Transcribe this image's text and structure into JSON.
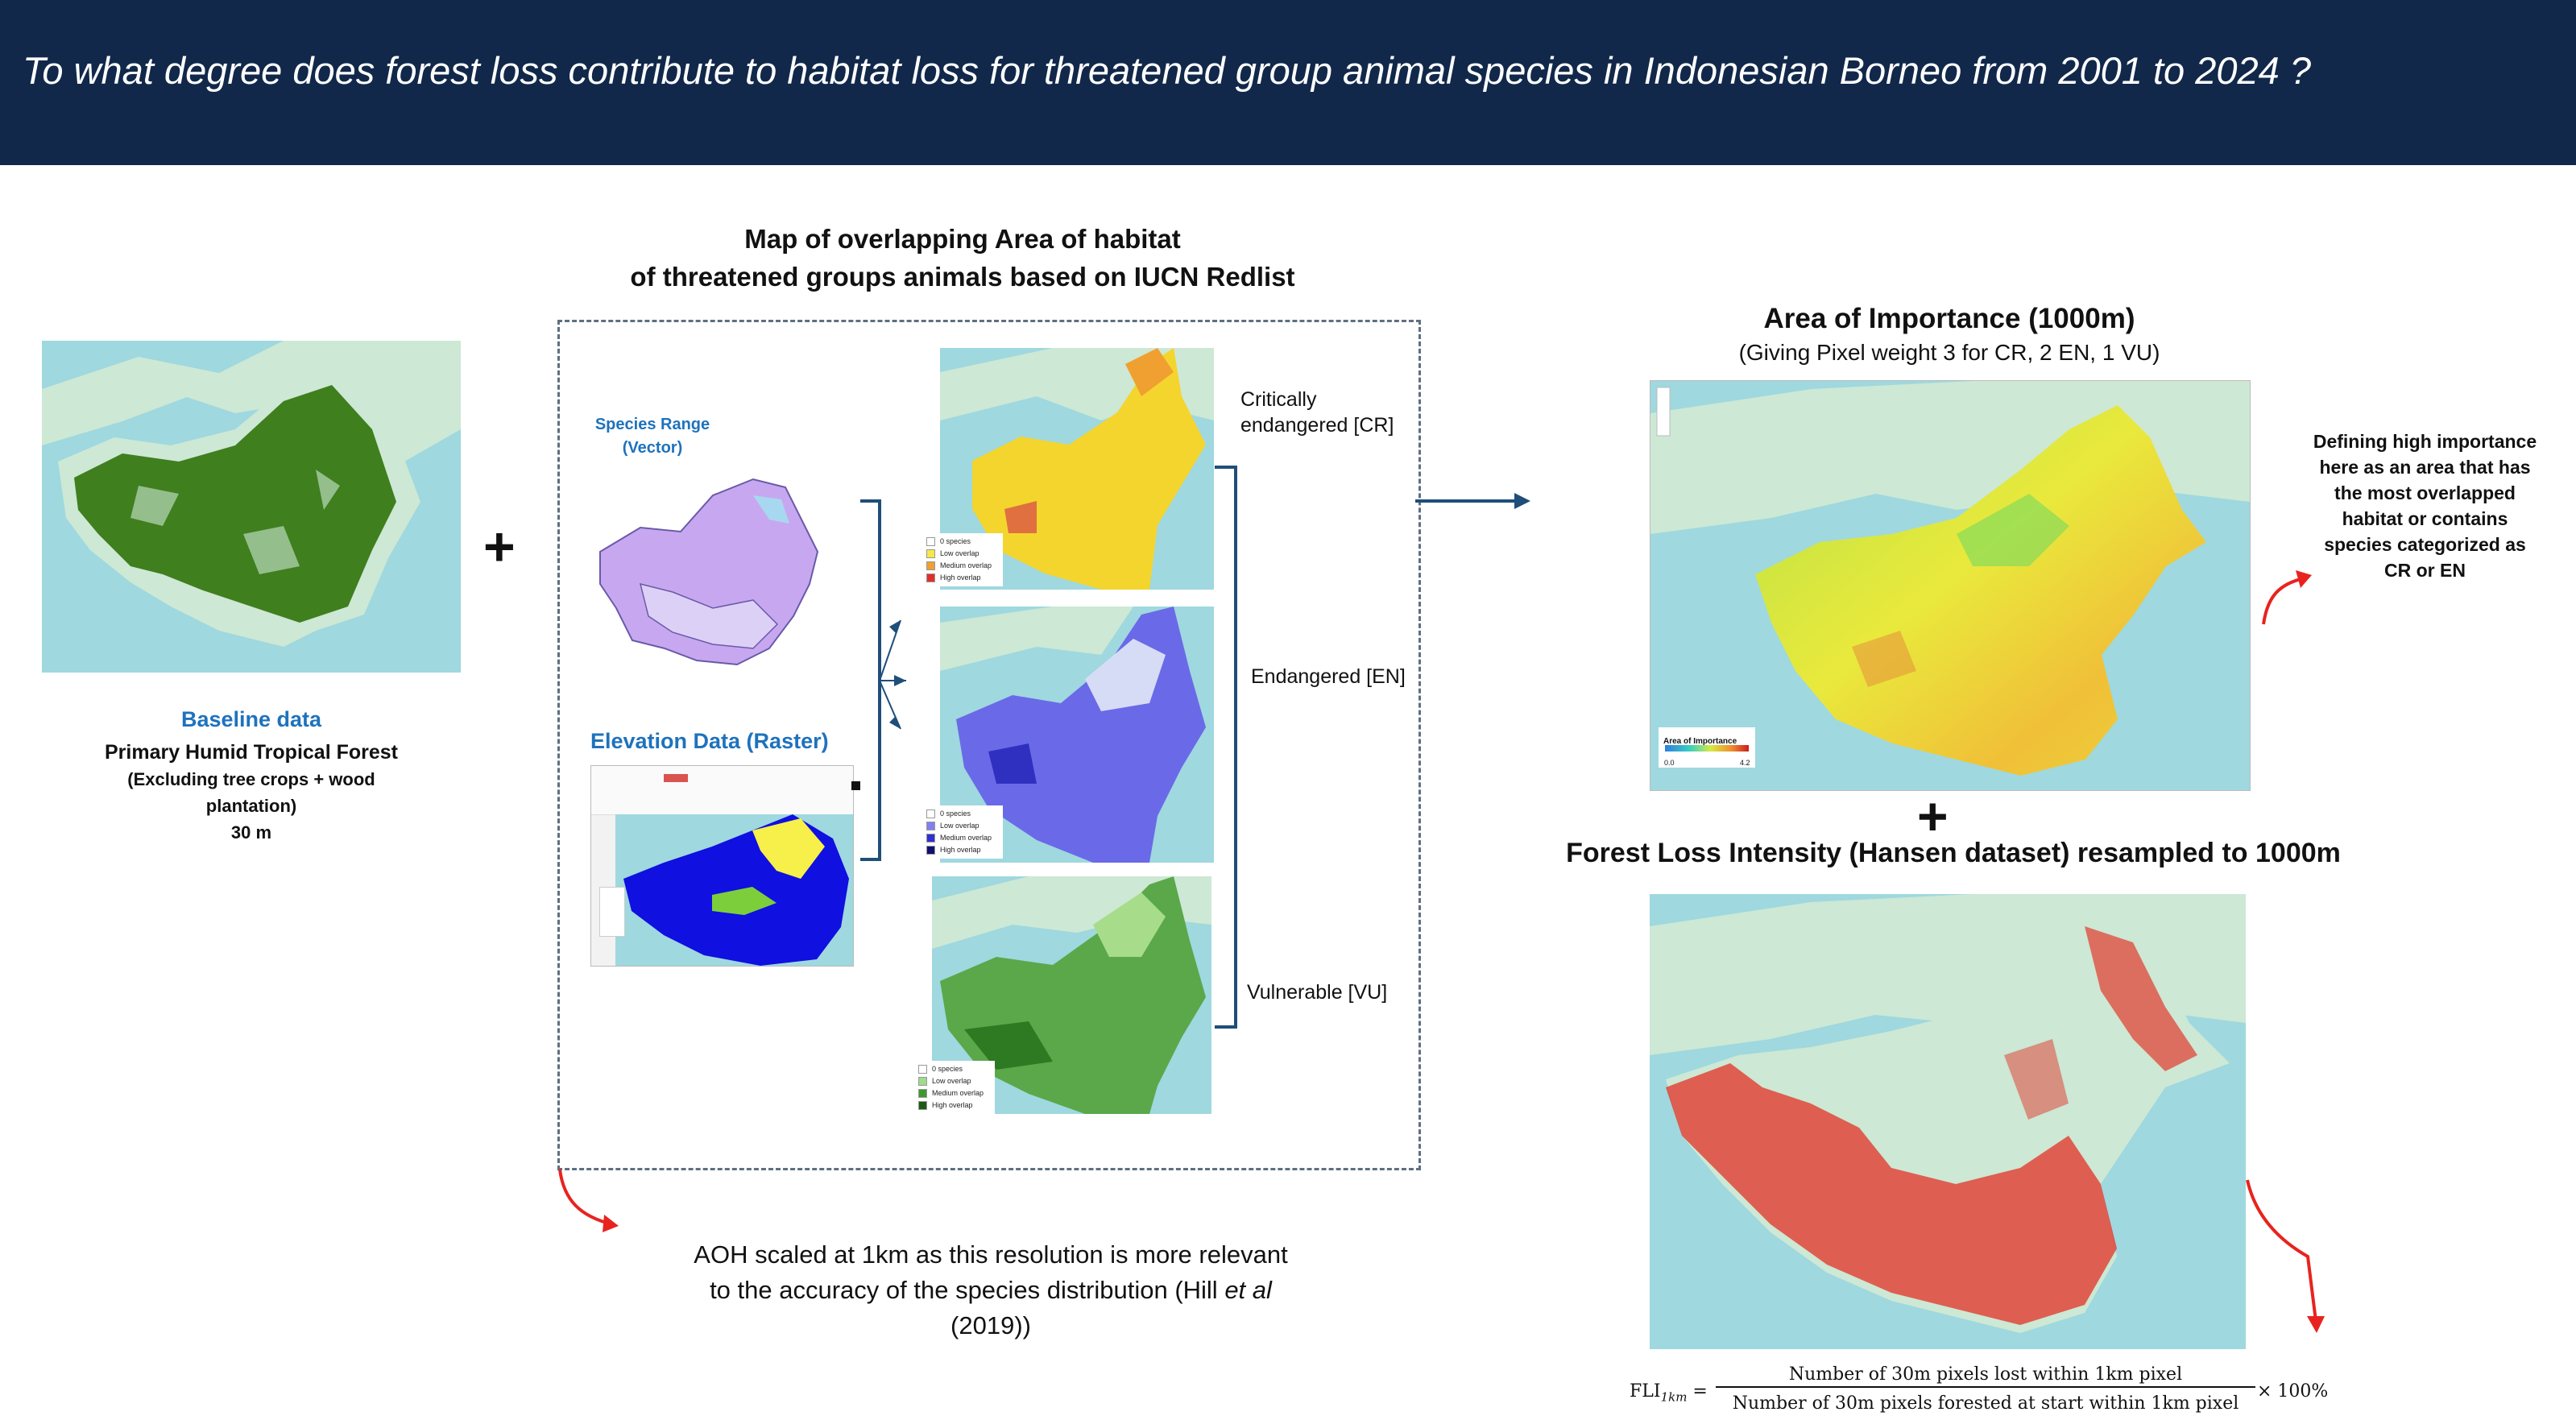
{
  "banner": {
    "question": "To what degree does forest loss contribute to habitat loss for threatened group animal species in Indonesian Borneo from 2001 to 2024 ?"
  },
  "baseline": {
    "heading": "Baseline data",
    "line1": "Primary Humid Tropical Forest",
    "line2": "(Excluding tree crops + wood",
    "line3": "plantation)",
    "line4": "30 m"
  },
  "overlap": {
    "title_line1": "Map of overlapping Area of habitat",
    "title_line2": "of threatened groups animals based on IUCN Redlist",
    "species_range_line1": "Species Range",
    "species_range_line2": "(Vector)",
    "elevation_label": "Elevation Data (Raster)",
    "cr_line1": "Critically",
    "cr_line2": "endangered [CR]",
    "en_label": "Endangered [EN]",
    "vu_label": "Vulnerable [VU]",
    "legend_cr": [
      "0 species",
      "Low overlap",
      "Medium overlap",
      "High overlap"
    ],
    "legend_en": [
      "0 species",
      "Low overlap",
      "Medium overlap",
      "High overlap"
    ],
    "legend_vu": [
      "0 species",
      "Low overlap",
      "Medium overlap",
      "High overlap"
    ],
    "colors": {
      "cr": [
        "#ffffff",
        "#f7e84a",
        "#f0a030",
        "#e0302a"
      ],
      "en": [
        "#ffffff",
        "#8080f0",
        "#3030d0",
        "#101070"
      ],
      "vu": [
        "#ffffff",
        "#9fdc8a",
        "#3c9a2c",
        "#1d5a16"
      ]
    }
  },
  "aoh_note": {
    "line1": "AOH scaled at 1km as this resolution is more relevant",
    "line2_pre": "to the accuracy of the species distribution (Hill ",
    "line2_em": "et al",
    "line3": "(2019))"
  },
  "importance": {
    "title": "Area of Importance (1000m)",
    "subtitle": "(Giving Pixel weight 3 for CR, 2 EN, 1 VU)",
    "legend_title": "Area of Importance",
    "legend_min": "0.0",
    "legend_max": "4.2",
    "note": "Defining high importance here as an area that has the most overlapped habitat or contains species categorized as CR or EN"
  },
  "forest_loss": {
    "title": "Forest Loss Intensity (Hansen dataset) resampled to 1000m"
  },
  "formula": {
    "lhs": "FLI",
    "lhs_sub": "1km",
    "numerator": "Number of 30m pixels lost within 1km pixel",
    "denominator": "Number of 30m pixels forested at start within 1km pixel",
    "rhs": "× 100%"
  },
  "colors": {
    "banner_bg": "#11284a",
    "baseline_heading": "#1e72bd",
    "species_blue": "#1e72bd",
    "arrow_navy": "#1f4e79",
    "arrow_red": "#e8231f",
    "forest_green": "#3f7f1e",
    "sea": "#9fd8df",
    "land": "#cde8d4"
  }
}
